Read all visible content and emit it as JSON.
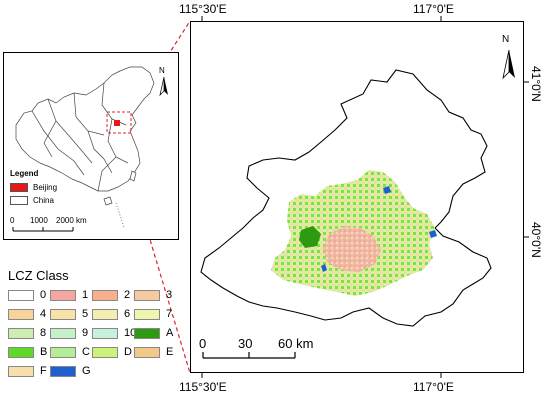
{
  "coords": {
    "top_left": "115°30'E",
    "top_right": "117°0'E",
    "bottom_left": "115°30'E",
    "bottom_right": "117°0'E",
    "right_upper": "41°0'N",
    "right_lower": "40°0'N"
  },
  "inset": {
    "legend_title": "Legend",
    "legend_items": [
      {
        "label": "Beijing",
        "color": "#e8171b"
      },
      {
        "label": "China",
        "color": "#ffffff"
      }
    ],
    "scale_labels": [
      "0",
      "1000",
      "2000 km"
    ],
    "north_label": "N"
  },
  "main_map": {
    "north_label": "N",
    "scale_labels": [
      "0",
      "30",
      "60 km"
    ]
  },
  "lcz_legend": {
    "title": "LCZ Class",
    "classes": [
      {
        "label": "0",
        "color": "#ffffff"
      },
      {
        "label": "1",
        "color": "#f4a6a0"
      },
      {
        "label": "2",
        "color": "#f7b08c"
      },
      {
        "label": "3",
        "color": "#f8c9a0"
      },
      {
        "label": "4",
        "color": "#f7d49a"
      },
      {
        "label": "5",
        "color": "#f8e2a8"
      },
      {
        "label": "6",
        "color": "#f3edb2"
      },
      {
        "label": "7",
        "color": "#f0f5b0"
      },
      {
        "label": "8",
        "color": "#cdeeb0"
      },
      {
        "label": "9",
        "color": "#c6f0c8"
      },
      {
        "label": "10",
        "color": "#c6f2dc"
      },
      {
        "label": "A",
        "color": "#2e9a12"
      },
      {
        "label": "B",
        "color": "#5fd82a"
      },
      {
        "label": "C",
        "color": "#b4ec98"
      },
      {
        "label": "D",
        "color": "#cdf27a"
      },
      {
        "label": "E",
        "color": "#f3c98a"
      },
      {
        "label": "F",
        "color": "#f7dfae"
      },
      {
        "label": "G",
        "color": "#1f5fd0"
      }
    ]
  }
}
